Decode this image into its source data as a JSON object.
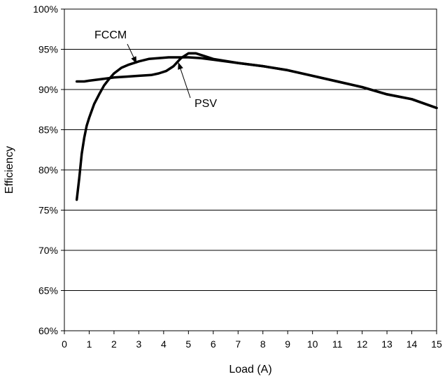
{
  "chart_data": {
    "type": "line",
    "title": "",
    "xlabel": "Load (A)",
    "ylabel": "Efficiency",
    "xlim": [
      0,
      15
    ],
    "ylim": [
      60,
      100
    ],
    "x_ticks": [
      0,
      1,
      2,
      3,
      4,
      5,
      6,
      7,
      8,
      9,
      10,
      11,
      12,
      13,
      14,
      15
    ],
    "x_tick_labels": [
      "0",
      "1",
      "2",
      "3",
      "4",
      "5",
      "6",
      "7",
      "8",
      "9",
      "10",
      "11",
      "12",
      "13",
      "14",
      "15"
    ],
    "y_ticks": [
      60,
      65,
      70,
      75,
      80,
      85,
      90,
      95,
      100
    ],
    "y_tick_labels": [
      "60%",
      "65%",
      "70%",
      "75%",
      "80%",
      "85%",
      "90%",
      "95%",
      "100%"
    ],
    "grid": "horizontal",
    "series": [
      {
        "name": "FCCM",
        "x": [
          0.5,
          0.6,
          0.7,
          0.8,
          0.9,
          1.0,
          1.2,
          1.4,
          1.6,
          1.8,
          2.0,
          2.3,
          2.6,
          3.0,
          3.4,
          3.8,
          4.2,
          4.6,
          5.0,
          5.5,
          6,
          7,
          8,
          9,
          10,
          11,
          12,
          13,
          14,
          15
        ],
        "y": [
          76.3,
          79.0,
          82.0,
          84.0,
          85.5,
          86.5,
          88.2,
          89.4,
          90.5,
          91.3,
          92.0,
          92.7,
          93.1,
          93.5,
          93.8,
          93.9,
          94.0,
          94.0,
          94.0,
          93.9,
          93.7,
          93.3,
          92.9,
          92.4,
          91.7,
          91.0,
          90.3,
          89.4,
          88.8,
          87.7
        ]
      },
      {
        "name": "PSV",
        "x": [
          0.5,
          0.8,
          1.0,
          1.5,
          2.0,
          2.5,
          3.0,
          3.5,
          3.8,
          4.1,
          4.4,
          4.7,
          5.0,
          5.3,
          5.6,
          6,
          7,
          8,
          9,
          10,
          11,
          12,
          13,
          14,
          15
        ],
        "y": [
          91.0,
          91.0,
          91.1,
          91.3,
          91.5,
          91.6,
          91.7,
          91.8,
          92.0,
          92.3,
          92.9,
          93.9,
          94.5,
          94.5,
          94.2,
          93.8,
          93.3,
          92.9,
          92.4,
          91.7,
          91.0,
          90.3,
          89.4,
          88.8,
          87.7
        ]
      }
    ],
    "annotations": [
      {
        "text": "FCCM",
        "arrow_to": {
          "x": 2.9,
          "y": 93.3
        }
      },
      {
        "text": "PSV",
        "arrow_to": {
          "x": 4.6,
          "y": 93.3
        }
      }
    ]
  }
}
